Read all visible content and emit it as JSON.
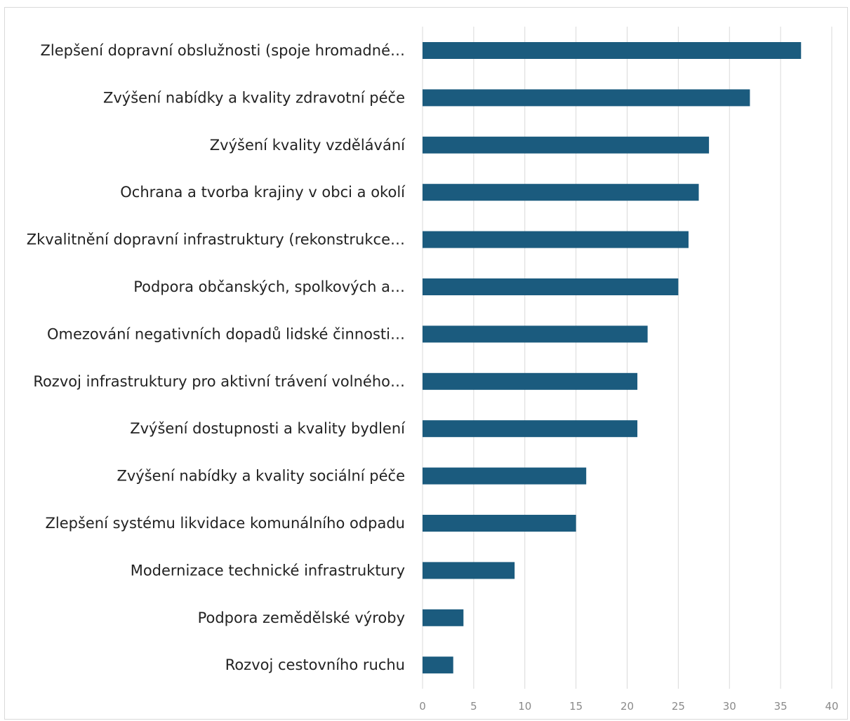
{
  "chart_data": {
    "type": "bar",
    "orientation": "horizontal",
    "categories": [
      "Zlepšení dopravní obslužnosti (spoje hromadné…",
      "Zvýšení nabídky a kvality zdravotní péče",
      "Zvýšení kvality vzdělávání",
      "Ochrana a tvorba krajiny v obci a okolí",
      "Zkvalitnění dopravní infrastruktury (rekonstrukce…",
      "Podpora občanských, spolkových a…",
      "Omezování negativních dopadů lidské činnosti…",
      "Rozvoj infrastruktury pro aktivní trávení volného…",
      "Zvýšení dostupnosti a kvality bydlení",
      "Zvýšení nabídky a kvality sociální péče",
      "Zlepšení systému likvidace komunálního odpadu",
      "Modernizace technické infrastruktury",
      "Podpora zemědělské výroby",
      "Rozvoj cestovního ruchu"
    ],
    "values": [
      37,
      32,
      28,
      27,
      26,
      25,
      22,
      21,
      21,
      16,
      15,
      9,
      4,
      3
    ],
    "xlim": [
      0,
      40
    ],
    "xticks": [
      "0",
      "5",
      "10",
      "15",
      "20",
      "25",
      "30",
      "35",
      "40"
    ],
    "grid": true,
    "bar_color": "#1b5b7e",
    "grid_color": "#d9d9d9",
    "title": "",
    "xlabel": "",
    "ylabel": ""
  }
}
